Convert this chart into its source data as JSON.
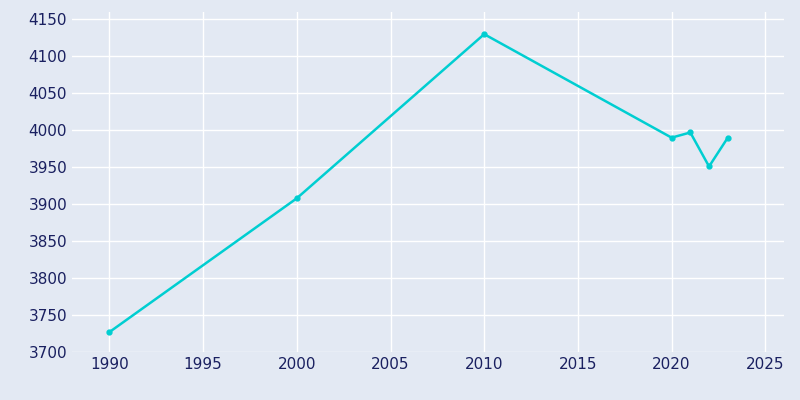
{
  "years": [
    1990,
    2000,
    2010,
    2020,
    2021,
    2022,
    2023
  ],
  "population": [
    3727,
    3908,
    4130,
    3990,
    3997,
    3951,
    3990
  ],
  "line_color": "#00CED1",
  "bg_color": "#E3E9F3",
  "grid_color": "#FFFFFF",
  "text_color": "#1a2060",
  "xlim": [
    1988,
    2026
  ],
  "ylim": [
    3700,
    4160
  ],
  "xticks": [
    1990,
    1995,
    2000,
    2005,
    2010,
    2015,
    2020,
    2025
  ],
  "yticks": [
    3700,
    3750,
    3800,
    3850,
    3900,
    3950,
    4000,
    4050,
    4100,
    4150
  ],
  "figsize": [
    8.0,
    4.0
  ],
  "dpi": 100
}
